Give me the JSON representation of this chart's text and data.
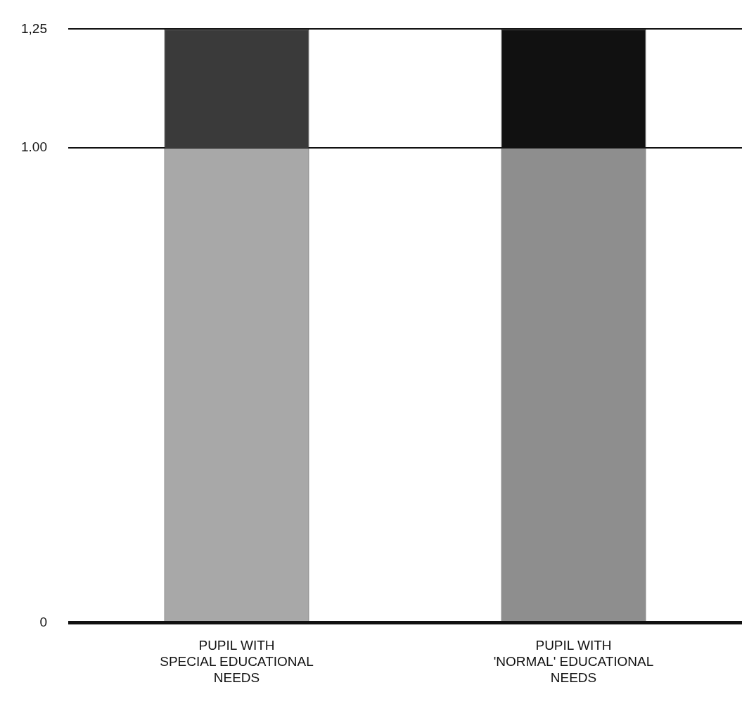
{
  "chart_data": {
    "type": "bar",
    "stacked": true,
    "categories": [
      "PUPIL WITH\nSPECIAL EDUCATIONAL\nNEEDS",
      "PUPIL WITH\n'NORMAL' EDUCATIONAL\nNEEDS"
    ],
    "series": [
      {
        "colors": [
          "#a8a8a8",
          "#8e8e8e"
        ],
        "values": [
          1.0,
          1.0
        ]
      },
      {
        "colors": [
          "#3a3a3a",
          "#111111"
        ],
        "values": [
          0.25,
          0.25
        ]
      }
    ],
    "ylim": [
      0,
      1.25
    ],
    "yticks": [
      {
        "value": 0,
        "label": "0"
      },
      {
        "value": 1,
        "label": "1.00"
      },
      {
        "value": 1.25,
        "label": "1,25"
      }
    ],
    "grid": "y",
    "legend": false
  }
}
